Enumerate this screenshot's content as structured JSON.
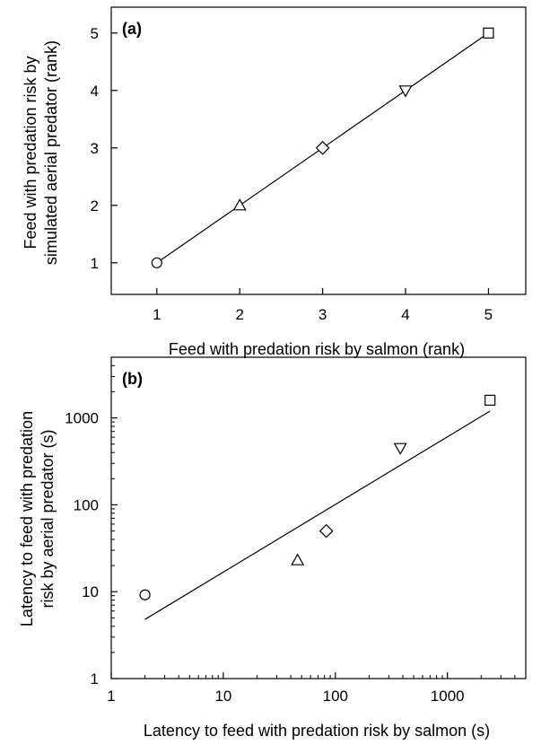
{
  "chart_data": [
    {
      "type": "scatter",
      "panel_label": "(a)",
      "xlabel": "Feed with predation risk by salmon (rank)",
      "ylabel": [
        "Feed with predation risk by",
        "simulated aerial predator (rank)"
      ],
      "xlim": [
        0.45,
        5.45
      ],
      "ylim": [
        0.45,
        5.45
      ],
      "xticks": [
        "1",
        "2",
        "3",
        "4",
        "5"
      ],
      "yticks": [
        "1",
        "2",
        "3",
        "4",
        "5"
      ],
      "grid": false,
      "points": [
        {
          "x": 1,
          "y": 1,
          "marker": "circle"
        },
        {
          "x": 2,
          "y": 2,
          "marker": "triangle-up"
        },
        {
          "x": 3,
          "y": 3,
          "marker": "diamond"
        },
        {
          "x": 4,
          "y": 4,
          "marker": "triangle-down"
        },
        {
          "x": 5,
          "y": 5,
          "marker": "square"
        }
      ],
      "fit_line": {
        "x": [
          1,
          5
        ],
        "y": [
          1,
          5
        ]
      }
    },
    {
      "type": "scatter",
      "panel_label": "(b)",
      "xlabel": "Latency to feed with predation risk by salmon (s)",
      "ylabel": [
        "Latency to feed with predation",
        "risk by aerial predator (s)"
      ],
      "xscale": "log",
      "yscale": "log",
      "xlim": [
        1,
        5000
      ],
      "ylim": [
        1,
        5000
      ],
      "xticks": [
        "1",
        "10",
        "100",
        "1000"
      ],
      "yticks": [
        "1",
        "10",
        "100",
        "1000"
      ],
      "grid": false,
      "points": [
        {
          "x": 2,
          "y": 9.2,
          "marker": "circle"
        },
        {
          "x": 46,
          "y": 23,
          "marker": "triangle-up"
        },
        {
          "x": 83,
          "y": 50,
          "marker": "diamond"
        },
        {
          "x": 380,
          "y": 450,
          "marker": "triangle-down"
        },
        {
          "x": 2400,
          "y": 1600,
          "marker": "square"
        }
      ],
      "fit_line": {
        "x": [
          2,
          2400
        ],
        "y": [
          4.8,
          1200
        ]
      }
    }
  ]
}
